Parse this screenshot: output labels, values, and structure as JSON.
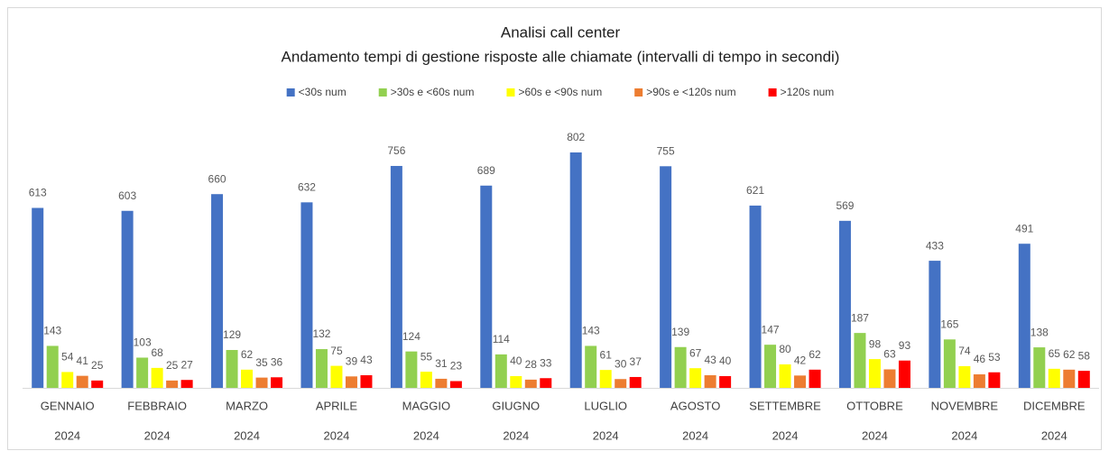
{
  "chart_data": {
    "type": "bar",
    "title": "Analisi call center",
    "subtitle": "Andamento tempi di gestione  risposte alle chiamate (intervalli di tempo in secondi)",
    "categories": [
      [
        "GENNAIO",
        "2024"
      ],
      [
        "FEBBRAIO",
        "2024"
      ],
      [
        "MARZO",
        "2024"
      ],
      [
        "APRILE",
        "2024"
      ],
      [
        "MAGGIO",
        "2024"
      ],
      [
        "GIUGNO",
        "2024"
      ],
      [
        "LUGLIO",
        "2024"
      ],
      [
        "AGOSTO",
        "2024"
      ],
      [
        "SETTEMBRE",
        "2024"
      ],
      [
        "OTTOBRE",
        "2024"
      ],
      [
        "NOVEMBRE",
        "2024"
      ],
      [
        "DICEMBRE",
        "2024"
      ]
    ],
    "series": [
      {
        "name": "<30s num",
        "color": "#4472c4",
        "values": [
          613,
          603,
          660,
          632,
          756,
          689,
          802,
          755,
          621,
          569,
          433,
          491
        ]
      },
      {
        "name": ">30s e <60s num",
        "color": "#92d050",
        "values": [
          143,
          103,
          129,
          132,
          124,
          114,
          143,
          139,
          147,
          187,
          165,
          138
        ]
      },
      {
        "name": ">60s e <90s num",
        "color": "#ffff00",
        "values": [
          54,
          68,
          62,
          75,
          55,
          40,
          61,
          67,
          80,
          98,
          74,
          65
        ]
      },
      {
        "name": ">90s e <120s num",
        "color": "#ed7d31",
        "values": [
          41,
          25,
          35,
          39,
          31,
          28,
          30,
          43,
          42,
          63,
          46,
          62
        ]
      },
      {
        "name": ">120s num",
        "color": "#ff0000",
        "values": [
          25,
          27,
          36,
          43,
          23,
          33,
          37,
          40,
          62,
          93,
          53,
          58
        ]
      }
    ],
    "legend": "top"
  }
}
